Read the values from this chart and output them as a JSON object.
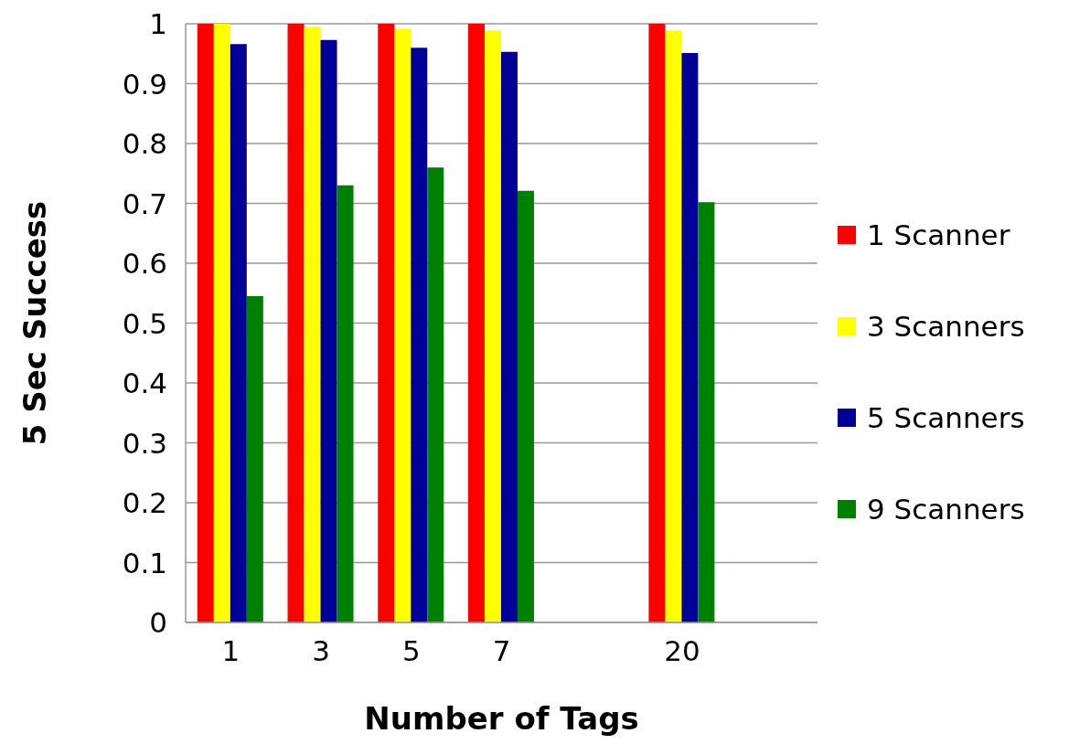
{
  "chart_data": {
    "type": "bar",
    "xlabel": "Number of Tags",
    "ylabel": "5 Sec Success",
    "categories": [
      "1",
      "3",
      "5",
      "7",
      null,
      "20",
      null
    ],
    "series": [
      {
        "name": "1 Scanner",
        "color": "#ff0000",
        "values": [
          1,
          1,
          1,
          1,
          null,
          1,
          null
        ]
      },
      {
        "name": "3 Scanners",
        "color": "#ffff00",
        "values": [
          1,
          0.995,
          0.992,
          0.989,
          null,
          0.989,
          null
        ]
      },
      {
        "name": "5 Scanners",
        "color": "#000099",
        "values": [
          0.966,
          0.973,
          0.96,
          0.953,
          null,
          0.951,
          null
        ]
      },
      {
        "name": "9 Scanners",
        "color": "#008000",
        "values": [
          0.545,
          0.73,
          0.76,
          0.721,
          null,
          0.702,
          null
        ]
      }
    ],
    "ylim": [
      0,
      1
    ],
    "yticks": [
      0,
      0.1,
      0.2,
      0.3,
      0.4,
      0.5,
      0.6,
      0.7,
      0.8,
      0.9,
      1
    ],
    "grid": "y",
    "legend": "right"
  }
}
